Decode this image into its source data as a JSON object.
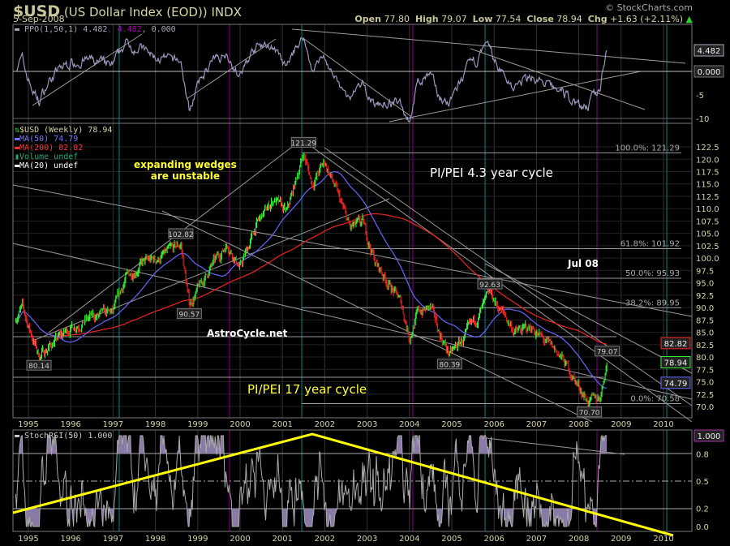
{
  "header": {
    "symbol": "$USD",
    "name": "(US Dollar Index (EOD))",
    "exchange": "INDX",
    "date": "5-Sep-2008",
    "brand": "© StockCharts.com",
    "open_label": "Open",
    "open": "77.80",
    "high_label": "High",
    "high": "79.07",
    "low_label": "Low",
    "low": "77.54",
    "close_label": "Close",
    "close": "78.94",
    "chg_label": "Chg",
    "chg": "+1.63 (+2.11%)"
  },
  "colors": {
    "up": "#33ee33",
    "down": "#ee2222",
    "ma50": "#6666ff",
    "ma200": "#ee2222",
    "teal": "#008888",
    "purple": "#880088",
    "yellow": "#ffff00",
    "ppo": "#9999bb"
  },
  "ppo_panel": {
    "legend_a": "PPO(1,50,1) 4.482",
    "legend_b": ", 4.482",
    "legend_c": ", 0.000",
    "ticks": [
      "-10",
      "-5"
    ],
    "tag_value": "4.482",
    "tag_zero": "0.000"
  },
  "price_panel": {
    "legend": [
      "$USD (Weekly) 78.94",
      "MA(50) 74.79",
      "MA(200) 82.82",
      "Volume undef",
      "MA(20) undef"
    ],
    "tags": {
      "ma200": "82.82",
      "close": "78.94",
      "ma50": "74.79"
    },
    "fib": [
      {
        "label": "100.0%: 121.29",
        "value": 121.29
      },
      {
        "label": "61.8%: 101.92",
        "value": 101.92
      },
      {
        "label": "50.0%: 95.93",
        "value": 95.93
      },
      {
        "label": "38.2%: 89.95",
        "value": 89.95
      },
      {
        "label": "0.0%: 70.58",
        "value": 70.58
      }
    ],
    "price_labels": [
      {
        "text": "121.29",
        "t": 2001.5,
        "v": 121.29,
        "pos": "above"
      },
      {
        "text": "102.82",
        "t": 1998.6,
        "v": 102.82,
        "pos": "above"
      },
      {
        "text": "90.57",
        "t": 1998.8,
        "v": 90.57,
        "pos": "below"
      },
      {
        "text": "80.14",
        "t": 1995.25,
        "v": 80.14,
        "pos": "below"
      },
      {
        "text": "80.39",
        "t": 2004.95,
        "v": 80.39,
        "pos": "below"
      },
      {
        "text": "92.63",
        "t": 2005.9,
        "v": 92.63,
        "pos": "above"
      },
      {
        "text": "79.07",
        "t": 2008.67,
        "v": 79.07,
        "pos": "above"
      },
      {
        "text": "70.70",
        "t": 2008.25,
        "v": 70.7,
        "pos": "below"
      }
    ],
    "annotations": {
      "wedge1": "expanding wedges",
      "wedge2": "are unstable",
      "cycle43": "PI/PEI 4.3 year cycle",
      "jul": "Jul 08",
      "site": "AstroCycle.net",
      "cycle17": "PI/PEI 17 year cycle"
    }
  },
  "stoch_panel": {
    "legend": "StochRSI(50) 1.000",
    "tag": "1.000"
  },
  "chart_data": {
    "type": "candlestick",
    "title": "$USD (US Dollar Index (EOD)) Weekly",
    "xlabel": "",
    "ylabel": "",
    "x_ticks": [
      "1995",
      "1996",
      "1997",
      "1998",
      "1999",
      "2000",
      "2001",
      "2002",
      "2003",
      "2004",
      "2005",
      "2006",
      "2007",
      "2008",
      "2009",
      "2010"
    ],
    "y_ticks": [
      "122.5",
      "120.0",
      "117.5",
      "115.0",
      "112.5",
      "110.0",
      "107.5",
      "105.0",
      "102.5",
      "100.0",
      "97.5",
      "95.0",
      "92.5",
      "90.0",
      "87.5",
      "85.0",
      "82.5",
      "80.0",
      "77.5",
      "75.0",
      "72.5",
      "70.0"
    ],
    "ylim": [
      69,
      124
    ],
    "xlim": [
      1994.64,
      2010.67
    ],
    "price_anchors": [
      [
        1994.7,
        88
      ],
      [
        1994.85,
        90
      ],
      [
        1995.05,
        85
      ],
      [
        1995.25,
        80.14
      ],
      [
        1995.6,
        83
      ],
      [
        1996.0,
        86
      ],
      [
        1996.5,
        88
      ],
      [
        1997.0,
        89
      ],
      [
        1997.3,
        96
      ],
      [
        1997.7,
        99
      ],
      [
        1998.1,
        100
      ],
      [
        1998.6,
        102.82
      ],
      [
        1998.8,
        90.57
      ],
      [
        1999.3,
        98
      ],
      [
        1999.7,
        103
      ],
      [
        2000.0,
        98
      ],
      [
        2000.4,
        107
      ],
      [
        2000.8,
        112
      ],
      [
        2001.1,
        109
      ],
      [
        2001.5,
        121.29
      ],
      [
        2001.7,
        115
      ],
      [
        2002.0,
        119.5
      ],
      [
        2002.3,
        113
      ],
      [
        2002.6,
        106
      ],
      [
        2002.9,
        107
      ],
      [
        2003.2,
        99
      ],
      [
        2003.5,
        95
      ],
      [
        2003.8,
        91
      ],
      [
        2004.0,
        84
      ],
      [
        2004.2,
        89
      ],
      [
        2004.5,
        90
      ],
      [
        2004.7,
        85
      ],
      [
        2004.95,
        80.39
      ],
      [
        2005.3,
        84
      ],
      [
        2005.6,
        88
      ],
      [
        2005.9,
        92.63
      ],
      [
        2006.2,
        89
      ],
      [
        2006.5,
        85
      ],
      [
        2006.9,
        86
      ],
      [
        2007.2,
        83
      ],
      [
        2007.5,
        81
      ],
      [
        2007.8,
        77
      ],
      [
        2008.0,
        74
      ],
      [
        2008.25,
        70.7
      ],
      [
        2008.5,
        72
      ],
      [
        2008.67,
        78.94
      ]
    ],
    "ppo_yticks": [
      "4.482",
      "0.000",
      "-5",
      "-10"
    ],
    "stoch_yticks": [
      "1.000",
      "0.8",
      "0.5",
      "0.2",
      "0.0"
    ]
  }
}
